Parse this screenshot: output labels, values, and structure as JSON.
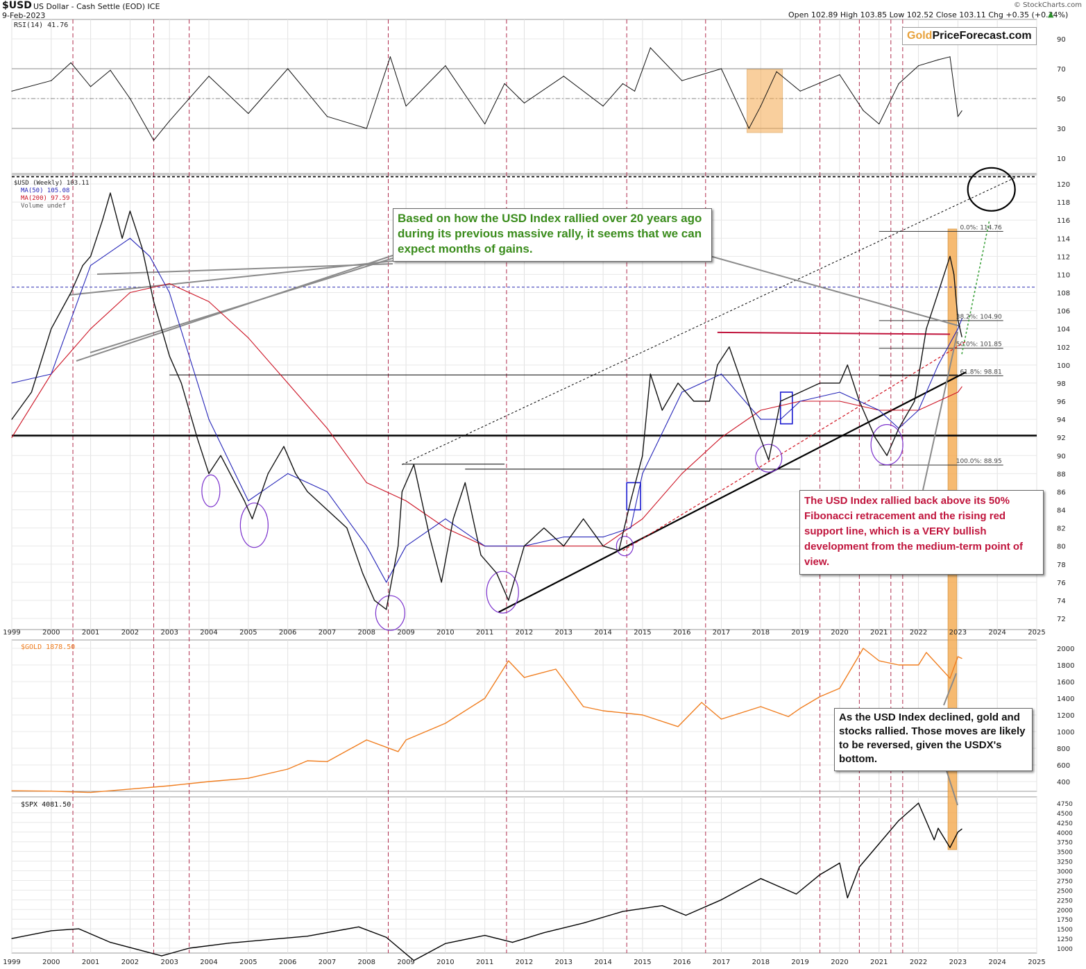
{
  "header": {
    "symbol": "$USD",
    "name": "US Dollar - Cash Settle (EOD) ICE",
    "date": "9-Feb-2023",
    "watermark": "© StockCharts.com",
    "ohlc": "Open 102.89  High 103.85  Low 102.52  Close 103.11  Chg +0.35 (+0.34%)",
    "ohlc_arrow": "▲"
  },
  "logo": {
    "gold": "Gold",
    "rest": "PriceForecast.com"
  },
  "colors": {
    "price": "#111111",
    "ma50": "#2424b8",
    "ma200": "#cc1122",
    "gold": "#f07d1e",
    "spx": "#000000",
    "rsi": "#111111",
    "vline": "#b02c4c",
    "highlight": "#f5a94e",
    "callout_green": "#3a8c1c",
    "callout_red": "#c0143c",
    "ellipse": "#7a2fcc"
  },
  "annotations": {
    "green": "Based on how the USD Index rallied over 20 years ago during its previous massive rally, it seems that we can expect months of gains.",
    "red": "The USD Index rallied back above its 50% Fibonacci retracement and the rising red support line, which is a VERY bullish development from the medium-term point of view.",
    "black": "As the USD Index declined, gold and stocks rallied. Those moves are likely to be reversed, given the USDX's bottom."
  },
  "chart_data": [
    {
      "type": "line",
      "title": "RSI(14) 41.76",
      "ylim": [
        0,
        100
      ],
      "yticks": [
        10,
        30,
        50,
        70,
        90
      ],
      "reference_lines": [
        30,
        50,
        70
      ],
      "series": [
        {
          "name": "RSI(14)",
          "x": [
            1999.0,
            2000.0,
            2000.5,
            2001.0,
            2001.5,
            2002.0,
            2002.6,
            2003.0,
            2004.0,
            2005.0,
            2006.0,
            2007.0,
            2008.0,
            2008.6,
            2009.0,
            2010.0,
            2011.0,
            2011.5,
            2012.0,
            2013.0,
            2014.0,
            2014.5,
            2014.8,
            2015.2,
            2016.0,
            2017.0,
            2017.7,
            2018.0,
            2018.4,
            2019.0,
            2020.0,
            2020.6,
            2021.0,
            2021.5,
            2022.0,
            2022.5,
            2022.8,
            2023.0,
            2023.1
          ],
          "values": [
            55,
            62,
            74,
            58,
            69,
            50,
            22,
            35,
            65,
            40,
            70,
            38,
            30,
            78,
            45,
            72,
            33,
            60,
            47,
            65,
            45,
            60,
            55,
            84,
            62,
            70,
            30,
            45,
            68,
            55,
            66,
            42,
            33,
            60,
            72,
            76,
            78,
            38,
            41.76
          ]
        }
      ]
    },
    {
      "type": "line",
      "title": "$USD (Weekly) 103.11",
      "ylim": [
        71,
        123
      ],
      "yticks": [
        72,
        74,
        76,
        78,
        80,
        82,
        84,
        86,
        88,
        90,
        92,
        94,
        96,
        98,
        100,
        102,
        104,
        106,
        108,
        110,
        112,
        114,
        116,
        118,
        120
      ],
      "x_ticks": [
        "1999",
        "2000",
        "2001",
        "2002",
        "2003",
        "2004",
        "2005",
        "2006",
        "2007",
        "2008",
        "2009",
        "2010",
        "2011",
        "2012",
        "2013",
        "2014",
        "2015",
        "2016",
        "2017",
        "2018",
        "2019",
        "2020",
        "2021",
        "2022",
        "2023",
        "2024",
        "2025"
      ],
      "legend": [
        "$USD (Weekly) 103.11",
        "MA(50) 105.08",
        "MA(200) 97.59",
        "Volume undef"
      ],
      "fibonacci": [
        {
          "label": "0.0%: 114.76",
          "value": 114.76
        },
        {
          "label": "38.2%: 104.90",
          "value": 104.9
        },
        {
          "label": "50.0%: 101.85",
          "value": 101.85
        },
        {
          "label": "61.8%: 98.81",
          "value": 98.81
        },
        {
          "label": "100.0%: 88.95",
          "value": 88.95
        }
      ],
      "horizontal_levels": [
        92.2,
        108.6,
        120.8
      ],
      "series": [
        {
          "name": "$USD (Weekly)",
          "x": [
            1999.0,
            1999.5,
            2000.0,
            2000.5,
            2000.8,
            2001.0,
            2001.3,
            2001.5,
            2001.8,
            2002.0,
            2002.3,
            2002.6,
            2003.0,
            2003.3,
            2003.7,
            2004.0,
            2004.3,
            2004.9,
            2005.1,
            2005.5,
            2005.9,
            2006.2,
            2006.5,
            2007.0,
            2007.5,
            2007.9,
            2008.2,
            2008.5,
            2008.8,
            2008.9,
            2009.2,
            2009.6,
            2009.9,
            2010.2,
            2010.5,
            2010.9,
            2011.3,
            2011.6,
            2012.0,
            2012.5,
            2013.0,
            2013.5,
            2014.0,
            2014.4,
            2014.7,
            2015.0,
            2015.2,
            2015.5,
            2015.9,
            2016.3,
            2016.7,
            2016.9,
            2017.2,
            2017.6,
            2017.9,
            2018.2,
            2018.5,
            2019.0,
            2019.5,
            2020.0,
            2020.2,
            2020.5,
            2020.9,
            2021.2,
            2021.5,
            2021.9,
            2022.2,
            2022.5,
            2022.8,
            2022.9,
            2023.0,
            2023.1
          ],
          "values": [
            94,
            97,
            104,
            108,
            111,
            112,
            116,
            119,
            114,
            117,
            113,
            107,
            101,
            98,
            92,
            88,
            90,
            85,
            83,
            88,
            91,
            88,
            86,
            84,
            82,
            77,
            74,
            73,
            80,
            86,
            89,
            81,
            76,
            83,
            87,
            79,
            77,
            74,
            80,
            82,
            80,
            83,
            80,
            79.5,
            85,
            90,
            99,
            95,
            98,
            96,
            96,
            100,
            102,
            97,
            93,
            89.5,
            96,
            97,
            98,
            98,
            100,
            96,
            92,
            90,
            93,
            96,
            104,
            108,
            112,
            110,
            105,
            103.11
          ]
        },
        {
          "name": "MA(50)",
          "x": [
            1999.0,
            2000.0,
            2001.0,
            2002.0,
            2002.5,
            2003.0,
            2004.0,
            2005.0,
            2006.0,
            2007.0,
            2008.0,
            2008.5,
            2009.0,
            2010.0,
            2011.0,
            2012.0,
            2013.0,
            2014.0,
            2014.7,
            2015.0,
            2016.0,
            2017.0,
            2018.0,
            2018.5,
            2019.0,
            2020.0,
            2021.0,
            2021.5,
            2022.0,
            2022.5,
            2023.0,
            2023.1
          ],
          "values": [
            98,
            99,
            111,
            114,
            112,
            108,
            94,
            85,
            88,
            86,
            80,
            76,
            80,
            83,
            80,
            80,
            81,
            81,
            82,
            88,
            97,
            99,
            94,
            94,
            96,
            97,
            95,
            93,
            95,
            100,
            104,
            105.08
          ]
        },
        {
          "name": "MA(200)",
          "x": [
            1999.0,
            2000.0,
            2001.0,
            2002.0,
            2003.0,
            2004.0,
            2005.0,
            2006.0,
            2007.0,
            2008.0,
            2009.0,
            2010.0,
            2011.0,
            2012.0,
            2013.0,
            2014.0,
            2015.0,
            2016.0,
            2017.0,
            2018.0,
            2019.0,
            2020.0,
            2021.0,
            2022.0,
            2023.0,
            2023.1
          ],
          "values": [
            92,
            99,
            104,
            108,
            109,
            107,
            103,
            98,
            93,
            87,
            85,
            82,
            80,
            80,
            80,
            80,
            83,
            88,
            92,
            95,
            96,
            96,
            95,
            95,
            97,
            97.59
          ]
        }
      ]
    },
    {
      "type": "line",
      "title": "$GOLD 1878.50",
      "yticks": [
        400,
        600,
        800,
        1000,
        1200,
        1400,
        1600,
        1800,
        2000
      ],
      "series": [
        {
          "name": "$GOLD",
          "x": [
            1999.0,
            2000.0,
            2001.0,
            2002.0,
            2003.0,
            2004.0,
            2005.0,
            2006.0,
            2006.5,
            2007.0,
            2008.0,
            2008.8,
            2009.0,
            2010.0,
            2011.0,
            2011.6,
            2012.0,
            2012.8,
            2013.5,
            2014.0,
            2015.0,
            2015.9,
            2016.5,
            2017.0,
            2018.0,
            2018.7,
            2019.0,
            2019.5,
            2020.0,
            2020.6,
            2021.0,
            2021.5,
            2022.0,
            2022.2,
            2022.8,
            2023.0,
            2023.1
          ],
          "values": [
            290,
            285,
            270,
            310,
            350,
            400,
            440,
            550,
            650,
            640,
            900,
            760,
            900,
            1100,
            1400,
            1850,
            1650,
            1750,
            1300,
            1250,
            1200,
            1060,
            1350,
            1150,
            1300,
            1180,
            1280,
            1420,
            1520,
            2000,
            1850,
            1800,
            1800,
            1950,
            1640,
            1900,
            1878.5
          ]
        }
      ]
    },
    {
      "type": "line",
      "title": "$SPX 4081.50",
      "yticks": [
        1000,
        1250,
        1500,
        1750,
        2000,
        2250,
        2500,
        2750,
        3000,
        3250,
        3500,
        3750,
        4000,
        4250,
        4500,
        4750
      ],
      "series": [
        {
          "name": "$SPX",
          "x": [
            1999.0,
            2000.0,
            2000.7,
            2001.5,
            2002.8,
            2003.5,
            2004.5,
            2005.5,
            2006.5,
            2007.8,
            2008.5,
            2009.2,
            2010.0,
            2011.0,
            2011.7,
            2012.5,
            2013.5,
            2014.5,
            2015.5,
            2016.1,
            2017.0,
            2018.0,
            2018.9,
            2019.5,
            2020.0,
            2020.2,
            2020.5,
            2021.0,
            2021.5,
            2022.0,
            2022.4,
            2022.5,
            2022.8,
            2023.0,
            2023.1
          ],
          "values": [
            1250,
            1450,
            1500,
            1150,
            800,
            1000,
            1130,
            1220,
            1310,
            1550,
            1280,
            680,
            1120,
            1330,
            1150,
            1400,
            1650,
            1950,
            2100,
            1850,
            2250,
            2800,
            2400,
            2900,
            3200,
            2300,
            3100,
            3700,
            4300,
            4750,
            3800,
            4100,
            3600,
            4000,
            4081.5
          ]
        }
      ]
    }
  ]
}
